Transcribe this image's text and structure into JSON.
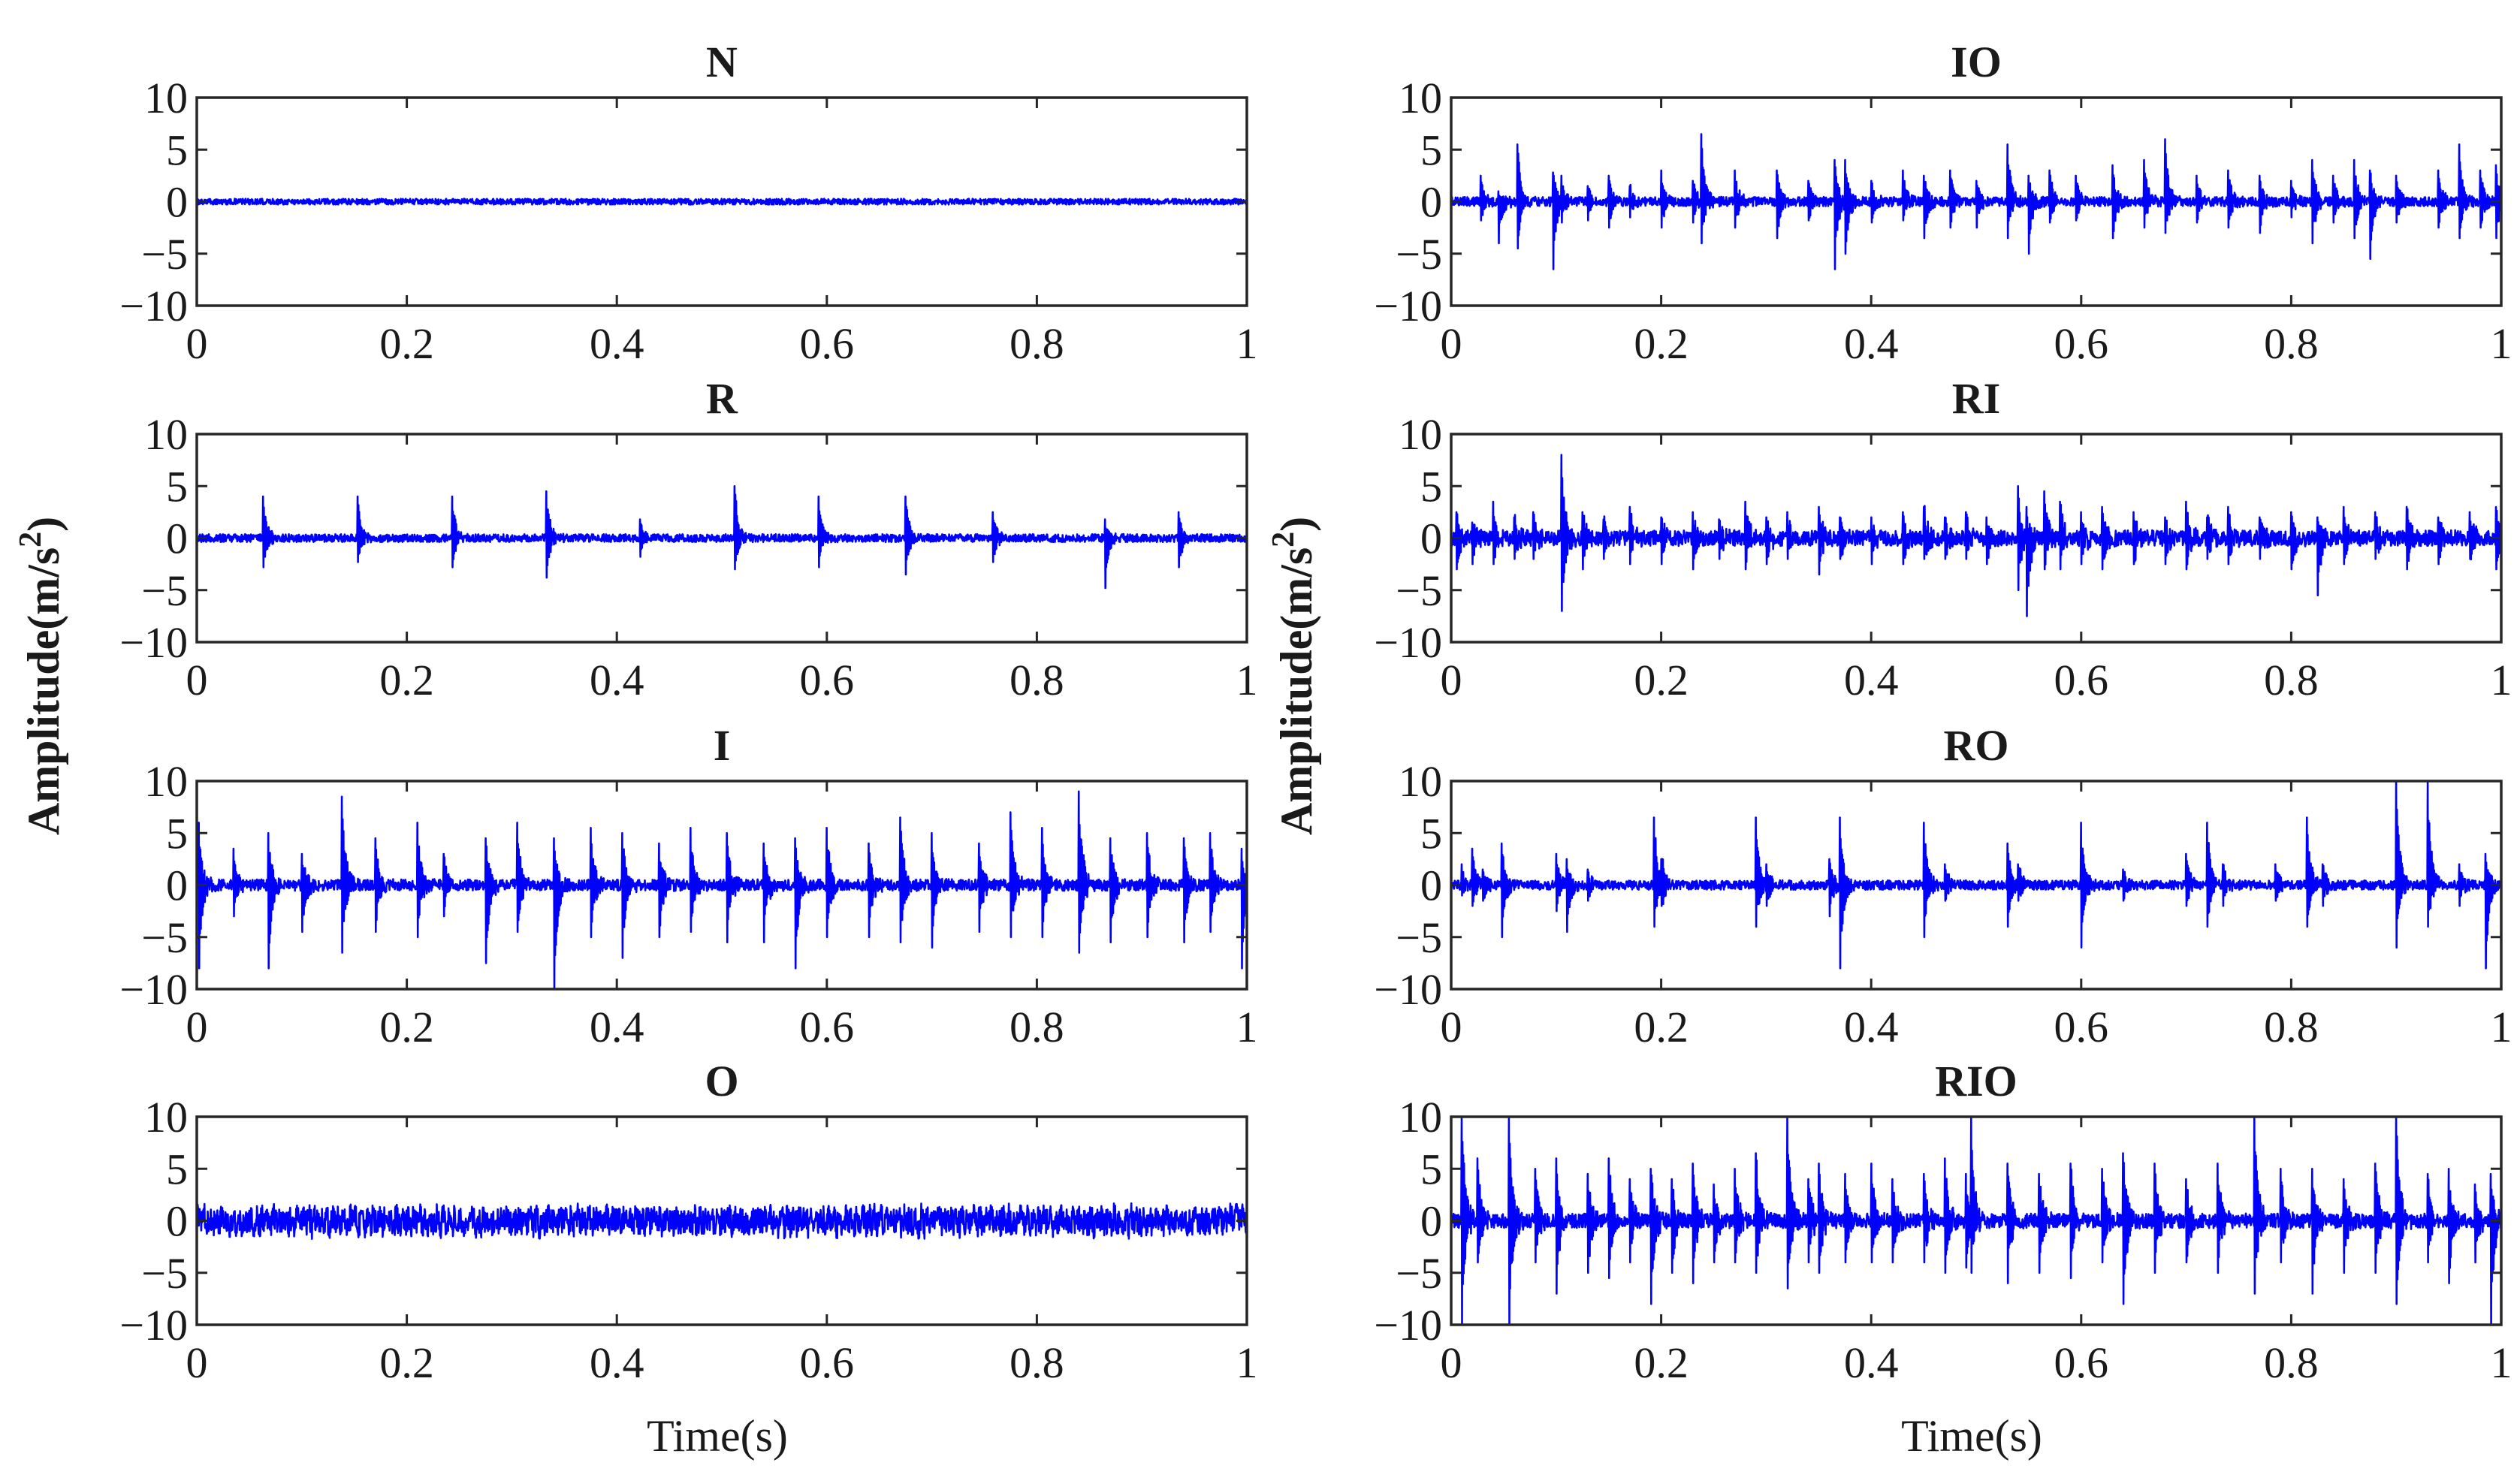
{
  "chart_data": {
    "type": "line",
    "layout": "4x2 grid of subplots",
    "line_color": "#0000ff",
    "xlim": [
      0,
      1
    ],
    "ylim": [
      -10,
      10
    ],
    "xticks": [
      "0",
      "0.2",
      "0.4",
      "0.6",
      "0.8",
      "1"
    ],
    "yticks": [
      "10",
      "5",
      "0",
      "−5",
      "−10"
    ],
    "xlabel": "Time(s)",
    "ylabel": "Amplitude(m/s²)",
    "ylabel_base": "Amplitude(m/s",
    "ylabel_sup": "2",
    "ylabel_close": ")",
    "panels": [
      {
        "title": "N",
        "col": 0,
        "row": 0,
        "noise": 0.28,
        "baseline": 0,
        "impulses": []
      },
      {
        "title": "IO",
        "col": 1,
        "row": 0,
        "noise": 0.45,
        "baseline": 0,
        "impulses": [
          [
            0.028,
            2.5,
            -1.8
          ],
          [
            0.045,
            1.0,
            -4.0
          ],
          [
            0.063,
            5.5,
            -4.5
          ],
          [
            0.097,
            2.8,
            -6.5
          ],
          [
            0.105,
            2.5,
            -2.0
          ],
          [
            0.13,
            1.5,
            -1.8
          ],
          [
            0.15,
            2.5,
            -2.5
          ],
          [
            0.17,
            1.5,
            -1.5
          ],
          [
            0.2,
            3.0,
            -2.5
          ],
          [
            0.23,
            2.0,
            -2.0
          ],
          [
            0.238,
            6.5,
            -4.0
          ],
          [
            0.27,
            3.0,
            -2.5
          ],
          [
            0.31,
            3.0,
            -3.5
          ],
          [
            0.34,
            2.0,
            -1.8
          ],
          [
            0.365,
            4.0,
            -6.5
          ],
          [
            0.375,
            4.0,
            -5.0
          ],
          [
            0.4,
            2.0,
            -2.0
          ],
          [
            0.43,
            3.0,
            -1.8
          ],
          [
            0.45,
            2.5,
            -3.5
          ],
          [
            0.475,
            3.0,
            -2.5
          ],
          [
            0.5,
            2.0,
            -2.5
          ],
          [
            0.53,
            5.5,
            -3.5
          ],
          [
            0.55,
            2.5,
            -5.0
          ],
          [
            0.57,
            3.0,
            -2.0
          ],
          [
            0.595,
            2.5,
            -1.8
          ],
          [
            0.63,
            3.5,
            -3.5
          ],
          [
            0.66,
            4.0,
            -2.5
          ],
          [
            0.68,
            6.0,
            -3.0
          ],
          [
            0.71,
            2.5,
            -2.0
          ],
          [
            0.74,
            3.0,
            -2.5
          ],
          [
            0.77,
            2.5,
            -3.0
          ],
          [
            0.8,
            2.0,
            -1.5
          ],
          [
            0.82,
            4.0,
            -4.0
          ],
          [
            0.84,
            2.5,
            -2.0
          ],
          [
            0.86,
            4.0,
            -3.5
          ],
          [
            0.875,
            3.0,
            -5.5
          ],
          [
            0.9,
            2.5,
            -2.0
          ],
          [
            0.94,
            3.0,
            -2.5
          ],
          [
            0.96,
            5.5,
            -3.5
          ],
          [
            0.98,
            3.0,
            -2.5
          ],
          [
            0.995,
            3.5,
            -3.5
          ]
        ]
      },
      {
        "title": "R",
        "col": 0,
        "row": 1,
        "noise": 0.38,
        "baseline": 0,
        "impulses": [
          [
            0.063,
            4.0,
            -2.8
          ],
          [
            0.153,
            4.0,
            -2.3
          ],
          [
            0.243,
            4.0,
            -2.8
          ],
          [
            0.333,
            4.5,
            -3.8
          ],
          [
            0.422,
            1.8,
            -1.8
          ],
          [
            0.512,
            5.0,
            -3.0
          ],
          [
            0.592,
            4.0,
            -2.8
          ],
          [
            0.675,
            4.0,
            -3.5
          ],
          [
            0.758,
            2.5,
            -2.3
          ],
          [
            0.865,
            1.8,
            -4.8
          ],
          [
            0.935,
            2.5,
            -2.8
          ]
        ]
      },
      {
        "title": "RI",
        "col": 1,
        "row": 1,
        "noise": 0.75,
        "baseline": 0,
        "impulses": [
          [
            0.005,
            2.5,
            -3.0
          ],
          [
            0.02,
            1.5,
            -2.5
          ],
          [
            0.04,
            3.5,
            -2.5
          ],
          [
            0.06,
            2.0,
            -2.0
          ],
          [
            0.078,
            2.5,
            -2.0
          ],
          [
            0.105,
            8.0,
            -7.0
          ],
          [
            0.125,
            2.5,
            -3.0
          ],
          [
            0.145,
            1.8,
            -2.0
          ],
          [
            0.17,
            3.0,
            -2.5
          ],
          [
            0.2,
            2.0,
            -2.5
          ],
          [
            0.23,
            2.5,
            -3.0
          ],
          [
            0.255,
            1.8,
            -2.0
          ],
          [
            0.28,
            3.5,
            -3.0
          ],
          [
            0.3,
            2.0,
            -2.5
          ],
          [
            0.32,
            2.5,
            -2.0
          ],
          [
            0.35,
            3.0,
            -3.5
          ],
          [
            0.37,
            2.0,
            -2.0
          ],
          [
            0.4,
            2.0,
            -2.5
          ],
          [
            0.43,
            2.5,
            -2.5
          ],
          [
            0.45,
            3.0,
            -2.0
          ],
          [
            0.47,
            2.0,
            -2.0
          ],
          [
            0.49,
            2.5,
            -2.0
          ],
          [
            0.51,
            2.0,
            -2.5
          ],
          [
            0.54,
            5.0,
            -5.0
          ],
          [
            0.548,
            3.0,
            -7.5
          ],
          [
            0.565,
            4.5,
            -3.0
          ],
          [
            0.58,
            3.5,
            -3.0
          ],
          [
            0.6,
            2.5,
            -2.5
          ],
          [
            0.62,
            3.0,
            -3.0
          ],
          [
            0.65,
            2.5,
            -2.5
          ],
          [
            0.68,
            2.0,
            -2.5
          ],
          [
            0.7,
            3.5,
            -3.0
          ],
          [
            0.72,
            2.0,
            -2.0
          ],
          [
            0.74,
            3.0,
            -2.5
          ],
          [
            0.77,
            2.0,
            -2.0
          ],
          [
            0.8,
            2.5,
            -3.0
          ],
          [
            0.825,
            2.0,
            -5.5
          ],
          [
            0.85,
            3.0,
            -2.5
          ],
          [
            0.88,
            2.5,
            -2.0
          ],
          [
            0.91,
            3.0,
            -3.0
          ],
          [
            0.94,
            2.0,
            -2.5
          ],
          [
            0.97,
            2.5,
            -2.0
          ],
          [
            0.995,
            3.0,
            -3.0
          ]
        ]
      },
      {
        "title": "I",
        "col": 0,
        "row": 2,
        "noise": 0.55,
        "baseline": 0,
        "impulses": [
          [
            0.002,
            6.0,
            -8.0
          ],
          [
            0.035,
            3.5,
            -3.0
          ],
          [
            0.068,
            5.0,
            -8.0
          ],
          [
            0.1,
            3.0,
            -4.5
          ],
          [
            0.138,
            8.5,
            -6.5
          ],
          [
            0.17,
            4.5,
            -4.5
          ],
          [
            0.21,
            6.0,
            -5.0
          ],
          [
            0.235,
            3.0,
            -3.0
          ],
          [
            0.275,
            4.5,
            -7.5
          ],
          [
            0.305,
            6.0,
            -4.5
          ],
          [
            0.34,
            4.5,
            -10.0
          ],
          [
            0.375,
            5.5,
            -5.0
          ],
          [
            0.405,
            5.0,
            -7.0
          ],
          [
            0.44,
            4.0,
            -5.0
          ],
          [
            0.47,
            5.5,
            -4.5
          ],
          [
            0.505,
            5.0,
            -5.5
          ],
          [
            0.54,
            4.0,
            -5.5
          ],
          [
            0.57,
            4.5,
            -8.0
          ],
          [
            0.6,
            5.5,
            -5.0
          ],
          [
            0.64,
            4.0,
            -5.0
          ],
          [
            0.67,
            6.5,
            -5.5
          ],
          [
            0.7,
            5.0,
            -6.0
          ],
          [
            0.745,
            4.0,
            -4.5
          ],
          [
            0.775,
            7.0,
            -5.0
          ],
          [
            0.805,
            5.5,
            -5.0
          ],
          [
            0.84,
            9.0,
            -6.5
          ],
          [
            0.87,
            4.5,
            -5.5
          ],
          [
            0.905,
            5.0,
            -5.0
          ],
          [
            0.94,
            4.5,
            -5.5
          ],
          [
            0.965,
            5.0,
            -4.5
          ],
          [
            0.995,
            3.5,
            -8.0
          ]
        ]
      },
      {
        "title": "RO",
        "col": 1,
        "row": 2,
        "noise": 0.45,
        "baseline": 0,
        "impulses": [
          [
            0.01,
            2.0,
            -1.0
          ],
          [
            0.02,
            3.5,
            -2.0
          ],
          [
            0.03,
            1.5,
            -1.5
          ],
          [
            0.048,
            4.0,
            -5.0
          ],
          [
            0.1,
            3.0,
            -2.5
          ],
          [
            0.11,
            2.5,
            -4.5
          ],
          [
            0.13,
            1.5,
            -1.5
          ],
          [
            0.193,
            6.5,
            -4.0
          ],
          [
            0.2,
            2.5,
            -2.0
          ],
          [
            0.29,
            6.5,
            -4.0
          ],
          [
            0.3,
            2.0,
            -2.0
          ],
          [
            0.36,
            2.5,
            -3.0
          ],
          [
            0.37,
            6.5,
            -8.0
          ],
          [
            0.45,
            6.0,
            -5.0
          ],
          [
            0.47,
            2.0,
            -1.5
          ],
          [
            0.53,
            4.0,
            -4.0
          ],
          [
            0.54,
            2.0,
            -1.5
          ],
          [
            0.6,
            6.0,
            -6.0
          ],
          [
            0.64,
            1.5,
            -1.5
          ],
          [
            0.7,
            3.0,
            -2.0
          ],
          [
            0.72,
            6.0,
            -4.0
          ],
          [
            0.735,
            2.0,
            -2.0
          ],
          [
            0.785,
            2.0,
            -1.5
          ],
          [
            0.815,
            6.5,
            -4.0
          ],
          [
            0.83,
            2.0,
            -2.0
          ],
          [
            0.9,
            10.0,
            -6.0
          ],
          [
            0.93,
            10.0,
            -4.0
          ],
          [
            0.96,
            2.0,
            -2.0
          ],
          [
            0.985,
            3.0,
            -8.0
          ]
        ]
      },
      {
        "title": "O",
        "col": 0,
        "row": 3,
        "noise": 1.3,
        "baseline": 0,
        "impulses": []
      },
      {
        "title": "RIO",
        "col": 1,
        "row": 3,
        "noise": 0.7,
        "baseline": 0,
        "impulses": [
          [
            0.01,
            10.0,
            -10.0
          ],
          [
            0.025,
            6.0,
            -4.0
          ],
          [
            0.055,
            10.0,
            -10.0
          ],
          [
            0.08,
            5.0,
            -4.0
          ],
          [
            0.1,
            6.0,
            -7.0
          ],
          [
            0.13,
            4.5,
            -5.0
          ],
          [
            0.15,
            6.0,
            -5.5
          ],
          [
            0.17,
            4.0,
            -4.0
          ],
          [
            0.19,
            5.0,
            -8.0
          ],
          [
            0.21,
            4.0,
            -5.0
          ],
          [
            0.23,
            5.5,
            -6.0
          ],
          [
            0.25,
            3.5,
            -4.0
          ],
          [
            0.27,
            5.0,
            -4.0
          ],
          [
            0.29,
            6.5,
            -5.0
          ],
          [
            0.32,
            10.0,
            -6.5
          ],
          [
            0.34,
            4.0,
            -4.0
          ],
          [
            0.35,
            5.5,
            -5.0
          ],
          [
            0.375,
            4.5,
            -4.0
          ],
          [
            0.4,
            5.5,
            -4.0
          ],
          [
            0.42,
            4.0,
            -4.0
          ],
          [
            0.45,
            4.5,
            -4.0
          ],
          [
            0.47,
            6.0,
            -5.0
          ],
          [
            0.49,
            4.5,
            -4.5
          ],
          [
            0.495,
            10.0,
            -5.0
          ],
          [
            0.53,
            5.5,
            -6.0
          ],
          [
            0.56,
            4.5,
            -5.0
          ],
          [
            0.59,
            5.5,
            -5.5
          ],
          [
            0.62,
            5.0,
            -4.0
          ],
          [
            0.64,
            6.5,
            -8.0
          ],
          [
            0.67,
            5.5,
            -5.0
          ],
          [
            0.7,
            4.0,
            -4.0
          ],
          [
            0.73,
            5.5,
            -5.0
          ],
          [
            0.765,
            10.0,
            -7.0
          ],
          [
            0.79,
            5.0,
            -4.0
          ],
          [
            0.82,
            5.0,
            -7.0
          ],
          [
            0.85,
            4.0,
            -5.0
          ],
          [
            0.88,
            5.5,
            -5.0
          ],
          [
            0.9,
            10.0,
            -8.0
          ],
          [
            0.93,
            4.5,
            -4.0
          ],
          [
            0.95,
            5.0,
            -6.0
          ],
          [
            0.975,
            3.5,
            -4.0
          ],
          [
            0.99,
            4.5,
            -10.0
          ]
        ]
      }
    ]
  }
}
